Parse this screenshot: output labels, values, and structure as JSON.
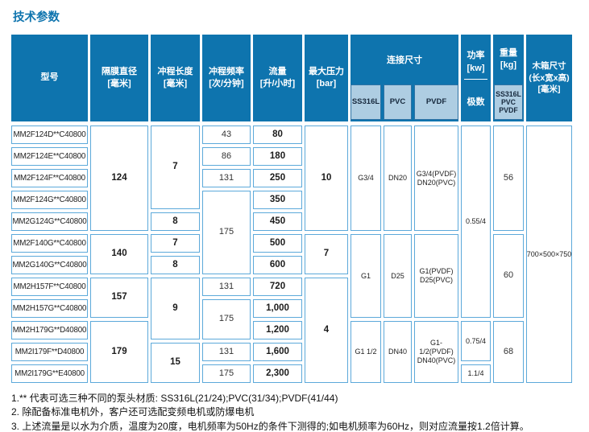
{
  "title": "技术参数",
  "colors": {
    "header_blue": "#0E74AE",
    "subheader_light": "#AECDE2",
    "cell_border": "#5CA9DA",
    "title_blue": "#0E74AE"
  },
  "header": {
    "model": "型号",
    "diaphragm_diameter": "隔膜直径\n[毫米]",
    "stroke_length": "冲程长度\n[毫米]",
    "stroke_frequency": "冲程频率\n[次/分钟]",
    "flow": "流量\n[升/小时]",
    "max_pressure": "最大压力\n[bar]",
    "connection": "连接尺寸",
    "connection_sub": {
      "ss316l": "SS316L",
      "pvc": "PVC",
      "pvdf": "PVDF"
    },
    "power": "功率\n[kw]",
    "power_sub": "极数",
    "weight": "重量\n[kg]",
    "weight_sub": "SS316L\nPVC\nPVDF",
    "box": "木箱尺寸\n(长x宽x高)\n[毫米]"
  },
  "table": {
    "column_names": [
      "model-cell",
      "diaphragm-diameter-cell",
      "stroke-length-cell",
      "stroke-frequency-cell",
      "flow-cell",
      "max-pressure-cell",
      "connection-ss316l-cell",
      "connection-pvc-cell",
      "connection-pvdf-cell",
      "power-cell",
      "weight-cell",
      "box-size-cell"
    ],
    "cells": [
      {
        "c": 1,
        "r": 1,
        "s": 1,
        "t": "MM2F124D**C40800",
        "cls": "model"
      },
      {
        "c": 1,
        "r": 2,
        "s": 1,
        "t": "MM2F124E**C40800",
        "cls": "model"
      },
      {
        "c": 1,
        "r": 3,
        "s": 1,
        "t": "MM2F124F**C40800",
        "cls": "model"
      },
      {
        "c": 1,
        "r": 4,
        "s": 1,
        "t": "MM2F124G**C40800",
        "cls": "model"
      },
      {
        "c": 1,
        "r": 5,
        "s": 1,
        "t": "MM2G124G**C40800",
        "cls": "model"
      },
      {
        "c": 1,
        "r": 6,
        "s": 1,
        "t": "MM2F140G**C40800",
        "cls": "model"
      },
      {
        "c": 1,
        "r": 7,
        "s": 1,
        "t": "MM2G140G**C40800",
        "cls": "model"
      },
      {
        "c": 1,
        "r": 8,
        "s": 1,
        "t": "MM2H157F**C40800",
        "cls": "model"
      },
      {
        "c": 1,
        "r": 9,
        "s": 1,
        "t": "MM2H157G**C40800",
        "cls": "model"
      },
      {
        "c": 1,
        "r": 10,
        "s": 1,
        "t": "MM2H179G**D40800",
        "cls": "model"
      },
      {
        "c": 1,
        "r": 11,
        "s": 1,
        "t": "MM2I179F**D40800",
        "cls": "model"
      },
      {
        "c": 1,
        "r": 12,
        "s": 1,
        "t": "MM2I179G**E40800",
        "cls": "model"
      },
      {
        "c": 2,
        "r": 1,
        "s": 5,
        "t": "124",
        "b": true
      },
      {
        "c": 2,
        "r": 6,
        "s": 2,
        "t": "140",
        "b": true
      },
      {
        "c": 2,
        "r": 8,
        "s": 2,
        "t": "157",
        "b": true
      },
      {
        "c": 2,
        "r": 10,
        "s": 3,
        "t": "179",
        "b": true
      },
      {
        "c": 3,
        "r": 1,
        "s": 4,
        "t": "7",
        "b": true
      },
      {
        "c": 3,
        "r": 5,
        "s": 1,
        "t": "8",
        "b": true
      },
      {
        "c": 3,
        "r": 6,
        "s": 1,
        "t": "7",
        "b": true
      },
      {
        "c": 3,
        "r": 7,
        "s": 1,
        "t": "8",
        "b": true
      },
      {
        "c": 3,
        "r": 8,
        "s": 3,
        "t": "9",
        "b": true
      },
      {
        "c": 3,
        "r": 11,
        "s": 2,
        "t": "15",
        "b": true
      },
      {
        "c": 4,
        "r": 1,
        "s": 1,
        "t": "43"
      },
      {
        "c": 4,
        "r": 2,
        "s": 1,
        "t": "86"
      },
      {
        "c": 4,
        "r": 3,
        "s": 1,
        "t": "131"
      },
      {
        "c": 4,
        "r": 4,
        "s": 4,
        "t": "175"
      },
      {
        "c": 4,
        "r": 8,
        "s": 1,
        "t": "131"
      },
      {
        "c": 4,
        "r": 9,
        "s": 2,
        "t": "175"
      },
      {
        "c": 4,
        "r": 11,
        "s": 1,
        "t": "131"
      },
      {
        "c": 4,
        "r": 12,
        "s": 1,
        "t": "175"
      },
      {
        "c": 5,
        "r": 1,
        "s": 1,
        "t": "80",
        "b": true
      },
      {
        "c": 5,
        "r": 2,
        "s": 1,
        "t": "180",
        "b": true
      },
      {
        "c": 5,
        "r": 3,
        "s": 1,
        "t": "250",
        "b": true
      },
      {
        "c": 5,
        "r": 4,
        "s": 1,
        "t": "350",
        "b": true
      },
      {
        "c": 5,
        "r": 5,
        "s": 1,
        "t": "450",
        "b": true
      },
      {
        "c": 5,
        "r": 6,
        "s": 1,
        "t": "500",
        "b": true
      },
      {
        "c": 5,
        "r": 7,
        "s": 1,
        "t": "600",
        "b": true
      },
      {
        "c": 5,
        "r": 8,
        "s": 1,
        "t": "720",
        "b": true
      },
      {
        "c": 5,
        "r": 9,
        "s": 1,
        "t": "1,000",
        "b": true
      },
      {
        "c": 5,
        "r": 10,
        "s": 1,
        "t": "1,200",
        "b": true
      },
      {
        "c": 5,
        "r": 11,
        "s": 1,
        "t": "1,600",
        "b": true
      },
      {
        "c": 5,
        "r": 12,
        "s": 1,
        "t": "2,300",
        "b": true
      },
      {
        "c": 6,
        "r": 1,
        "s": 5,
        "t": "10",
        "b": true
      },
      {
        "c": 6,
        "r": 6,
        "s": 2,
        "t": "7",
        "b": true
      },
      {
        "c": 6,
        "r": 8,
        "s": 5,
        "t": "4",
        "b": true
      },
      {
        "c": 7,
        "r": 1,
        "s": 5,
        "t": "G3/4",
        "cls": "small"
      },
      {
        "c": 7,
        "r": 6,
        "s": 4,
        "t": "G1",
        "cls": "small"
      },
      {
        "c": 7,
        "r": 10,
        "s": 3,
        "t": "G1 1/2",
        "cls": "small"
      },
      {
        "c": 8,
        "r": 1,
        "s": 5,
        "t": "DN20",
        "cls": "small"
      },
      {
        "c": 8,
        "r": 6,
        "s": 4,
        "t": "D25",
        "cls": "small"
      },
      {
        "c": 8,
        "r": 10,
        "s": 3,
        "t": "DN40",
        "cls": "small"
      },
      {
        "c": 9,
        "r": 1,
        "s": 5,
        "t": "G3/4(PVDF)\nDN20(PVC)",
        "cls": "small"
      },
      {
        "c": 9,
        "r": 6,
        "s": 4,
        "t": "G1(PVDF)\nD25(PVC)",
        "cls": "small"
      },
      {
        "c": 9,
        "r": 10,
        "s": 3,
        "t": "G1-1/2(PVDF)\nDN40(PVC)",
        "cls": "small"
      },
      {
        "c": 10,
        "r": 1,
        "s": 9,
        "t": "0.55/4",
        "cls": "small"
      },
      {
        "c": 10,
        "r": 10,
        "s": 2,
        "t": "0.75/4",
        "cls": "small"
      },
      {
        "c": 10,
        "r": 12,
        "s": 1,
        "t": "1.1/4",
        "cls": "small"
      },
      {
        "c": 11,
        "r": 1,
        "s": 5,
        "t": "56"
      },
      {
        "c": 11,
        "r": 6,
        "s": 4,
        "t": "60"
      },
      {
        "c": 11,
        "r": 10,
        "s": 3,
        "t": "68"
      },
      {
        "c": 12,
        "r": 1,
        "s": 12,
        "t": "700×500×750",
        "cls": "small"
      }
    ]
  },
  "footnotes": [
    "1.** 代表可选三种不同的泵头材质: SS316L(21/24);PVC(31/34);PVDF(41/44)",
    "2. 除配备标准电机外，客户还可选配变频电机或防爆电机",
    "3. 上述流量是以水为介质，温度为20度，电机频率为50Hz的条件下测得的;如电机频率为60Hz，则对应流量按1.2倍计算。"
  ]
}
